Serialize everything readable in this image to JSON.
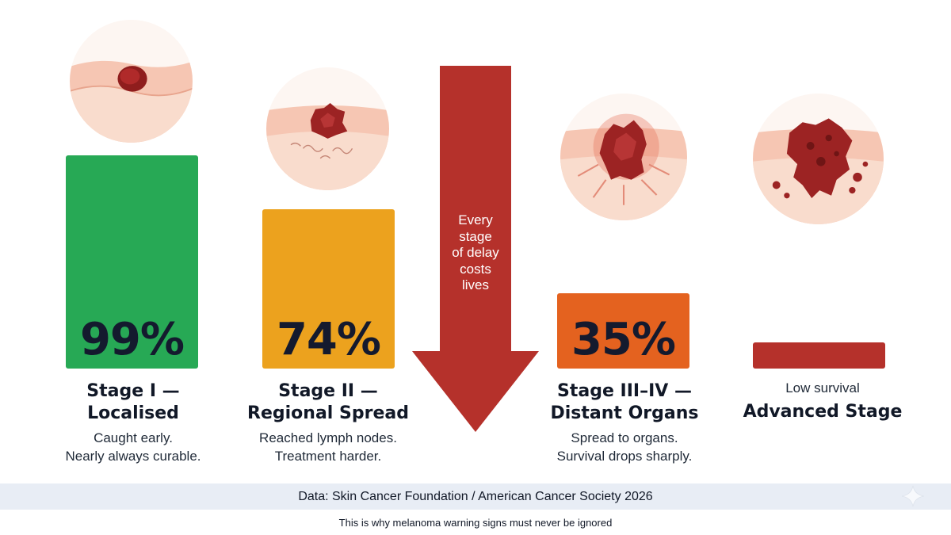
{
  "chart_data": {
    "type": "bar",
    "categories": [
      "Stage I — Localised",
      "Stage II — Regional Spread",
      "Stage III–IV — Distant Organs",
      "Advanced Stage"
    ],
    "series": [
      {
        "values": [
          99,
          74,
          35,
          12
        ]
      }
    ],
    "ylim": [
      0,
      100
    ],
    "grid": false,
    "colors": [
      "#27a955",
      "#eca21e",
      "#e4621f",
      "#b5312b"
    ]
  },
  "stages": [
    {
      "value_label": "99%",
      "title_line1": "Stage I —",
      "title_line2": "Localised",
      "desc_line1": "Caught early.",
      "desc_line2": "Nearly always curable."
    },
    {
      "value_label": "74%",
      "title_line1": "Stage II —",
      "title_line2": "Regional Spread",
      "desc_line1": "Reached lymph nodes.",
      "desc_line2": "Treatment harder."
    },
    {
      "value_label": "35%",
      "title_line1": "Stage III–IV —",
      "title_line2": "Distant Organs",
      "desc_line1": "Spread to organs.",
      "desc_line2": "Survival drops sharply."
    },
    {
      "subtitle": "Low survival",
      "title": "Advanced Stage"
    }
  ],
  "arrow": {
    "lines": [
      "Every",
      "stage",
      "of delay",
      "costs",
      "lives"
    ],
    "color": "#b5312b"
  },
  "source": "Data: Skin Cancer Foundation / American Cancer Society 2026",
  "footnote": "This is why melanoma warning signs must never be ignored"
}
